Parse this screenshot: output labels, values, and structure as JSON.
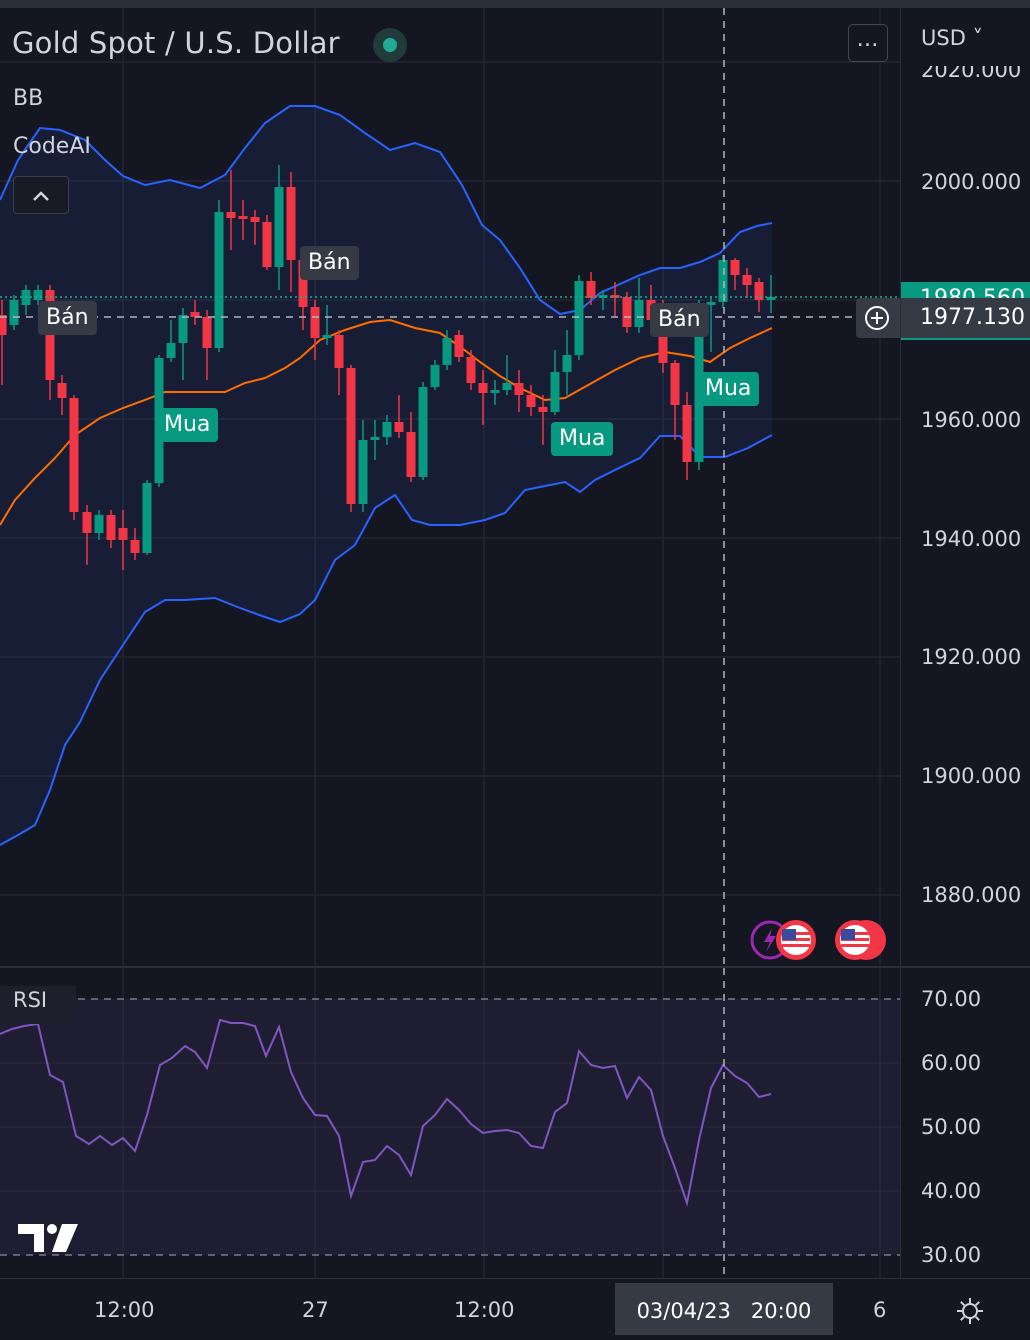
{
  "header": {
    "symbol_title": "Gold Spot / U.S. Dollar",
    "status": "market-open-dot",
    "more_button": "…",
    "currency": "USD ˅"
  },
  "indicators": {
    "bb": "BB",
    "codeai": "CodeAI",
    "rsi": "RSI"
  },
  "price_axis": {
    "labels": [
      "2020.000",
      "2000.000",
      "1960.000",
      "1940.000",
      "1920.000",
      "1900.000",
      "1880.000"
    ],
    "last_price": "1980.560",
    "crosshair_price": "1977.130"
  },
  "rsi_axis": {
    "labels": [
      "70.00",
      "60.00",
      "50.00",
      "40.00",
      "30.00"
    ]
  },
  "time_axis": {
    "labels": [
      "12:00",
      "27",
      "12:00",
      "6"
    ],
    "crosshair_time": "03/04/23   20:00"
  },
  "signals": [
    "Bán",
    "Bán",
    "Mua",
    "Bán",
    "Mua",
    "Mua"
  ],
  "colors": {
    "up": "#089981",
    "down": "#f23645",
    "bb_band": "#2962ff",
    "bb_basis": "#ff6d00",
    "rsi_line": "#7e57c2"
  },
  "icons": [
    "economic-event-icon",
    "us-flag-icon",
    "settings-gear-icon",
    "tradingview-logo-icon",
    "add-alert-icon"
  ]
}
